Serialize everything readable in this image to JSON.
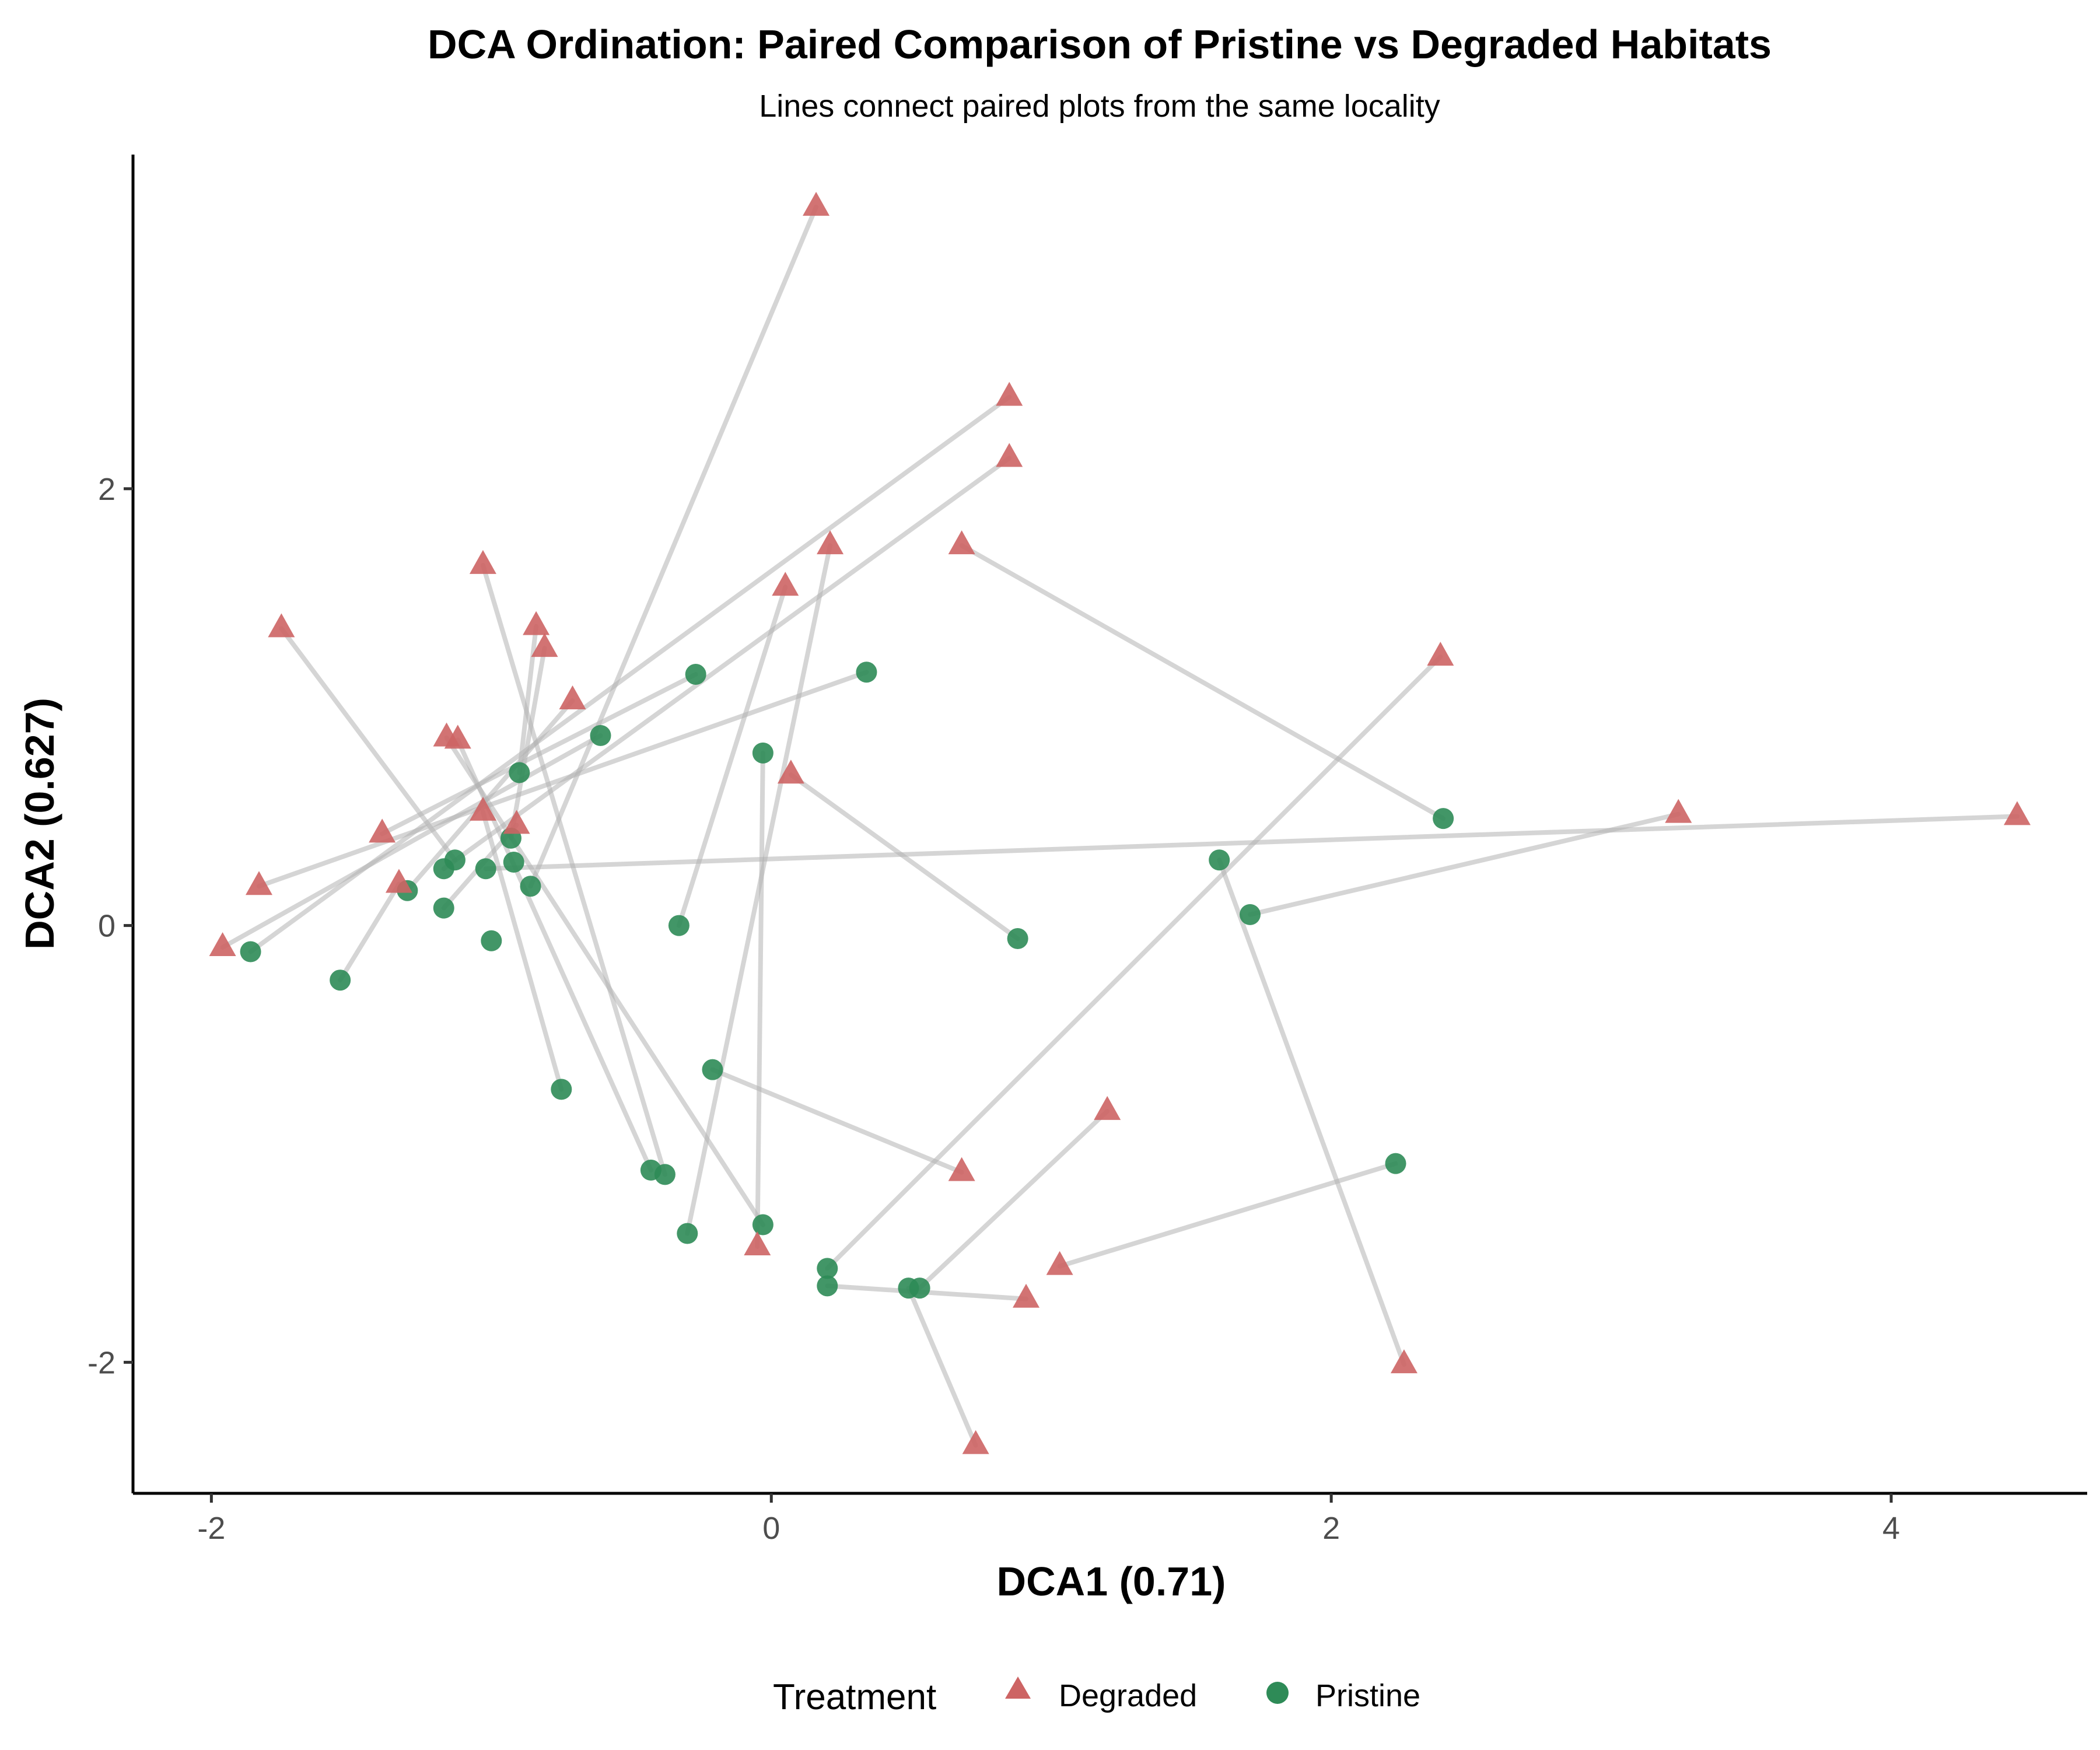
{
  "chart_data": {
    "type": "scatter",
    "title": "DCA Ordination: Paired Comparison of Pristine vs Degraded Habitats",
    "subtitle": "Lines connect paired plots from the same locality",
    "xlabel": "DCA1 (0.71)",
    "ylabel": "DCA2 (0.627)",
    "xlim": [
      -2.28,
      4.7
    ],
    "ylim": [
      -2.6,
      3.53
    ],
    "x_ticks": [
      -2,
      0,
      2,
      4
    ],
    "y_ticks": [
      -2,
      0,
      2
    ],
    "x_tick_labels": [
      "-2",
      "0",
      "2",
      "4"
    ],
    "y_tick_labels": [
      "-2",
      "0",
      "2"
    ],
    "grid": false,
    "legend": {
      "title": "Treatment",
      "position": "bottom",
      "entries": [
        {
          "label": "Degraded",
          "shape": "triangle",
          "color": "#CD6464"
        },
        {
          "label": "Pristine",
          "shape": "circle",
          "color": "#2E8B57"
        }
      ]
    },
    "series": [
      {
        "name": "Degraded",
        "shape": "triangle",
        "color": "#CD6464"
      },
      {
        "name": "Pristine",
        "shape": "circle",
        "color": "#2E8B57"
      }
    ],
    "pairs": [
      {
        "degraded": [
          0.16,
          3.29
        ],
        "pristine": [
          -0.86,
          0.18
        ]
      },
      {
        "degraded": [
          0.85,
          2.42
        ],
        "pristine": [
          -1.86,
          -0.12
        ]
      },
      {
        "degraded": [
          0.85,
          2.14
        ],
        "pristine": [
          -1.17,
          0.26
        ]
      },
      {
        "degraded": [
          0.21,
          1.74
        ],
        "pristine": [
          -0.3,
          -1.41
        ]
      },
      {
        "degraded": [
          0.68,
          1.74
        ],
        "pristine": [
          2.4,
          0.49
        ]
      },
      {
        "degraded": [
          0.05,
          1.55
        ],
        "pristine": [
          -0.33,
          0.0
        ]
      },
      {
        "degraded": [
          -1.75,
          1.36
        ],
        "pristine": [
          -1.13,
          0.3
        ]
      },
      {
        "degraded": [
          -0.84,
          1.37
        ],
        "pristine": [
          -0.9,
          0.7
        ]
      },
      {
        "degraded": [
          -0.81,
          1.27
        ],
        "pristine": [
          -0.93,
          0.4
        ]
      },
      {
        "degraded": [
          -0.71,
          1.03
        ],
        "pristine": [
          -1.3,
          0.16
        ]
      },
      {
        "degraded": [
          -1.03,
          1.65
        ],
        "pristine": [
          -0.38,
          -1.14
        ]
      },
      {
        "degraded": [
          -1.16,
          0.86
        ],
        "pristine": [
          -0.03,
          -1.37
        ]
      },
      {
        "degraded": [
          -1.12,
          0.85
        ],
        "pristine": [
          -0.43,
          -1.12
        ]
      },
      {
        "degraded": [
          -1.03,
          0.52
        ],
        "pristine": [
          -0.75,
          -0.75
        ]
      },
      {
        "degraded": [
          -0.91,
          0.46
        ],
        "pristine": [
          -1.17,
          0.08
        ]
      },
      {
        "degraded": [
          -1.39,
          0.42
        ],
        "pristine": [
          -0.27,
          1.15
        ]
      },
      {
        "degraded": [
          -1.83,
          0.18
        ],
        "pristine": [
          0.34,
          1.16
        ]
      },
      {
        "degraded": [
          -1.33,
          0.19
        ],
        "pristine": [
          -1.54,
          -0.25
        ]
      },
      {
        "degraded": [
          -1.96,
          -0.1
        ],
        "pristine": [
          -0.61,
          0.87
        ]
      },
      {
        "degraded": [
          0.07,
          0.69
        ],
        "pristine": [
          0.88,
          -0.06
        ]
      },
      {
        "degraded": [
          2.39,
          1.23
        ],
        "pristine": [
          0.2,
          -1.57
        ]
      },
      {
        "degraded": [
          4.45,
          0.5
        ],
        "pristine": [
          -1.02,
          0.26
        ]
      },
      {
        "degraded": [
          3.24,
          0.51
        ],
        "pristine": [
          1.71,
          0.05
        ]
      },
      {
        "degraded": [
          2.26,
          -2.01
        ],
        "pristine": [
          1.6,
          0.3
        ]
      },
      {
        "degraded": [
          0.68,
          -1.13
        ],
        "pristine": [
          -0.21,
          -0.66
        ]
      },
      {
        "degraded": [
          1.2,
          -0.85
        ],
        "pristine": [
          0.53,
          -1.66
        ]
      },
      {
        "degraded": [
          1.03,
          -1.56
        ],
        "pristine": [
          2.23,
          -1.09
        ]
      },
      {
        "degraded": [
          0.91,
          -1.71
        ],
        "pristine": [
          0.2,
          -1.65
        ]
      },
      {
        "degraded": [
          0.73,
          -2.38
        ],
        "pristine": [
          0.49,
          -1.66
        ]
      },
      {
        "degraded": [
          -0.05,
          -1.47
        ],
        "pristine": [
          -0.03,
          0.79
        ]
      },
      {
        "degraded": [
          null,
          null
        ],
        "pristine": [
          -1.0,
          -0.07
        ]
      },
      {
        "degraded": [
          null,
          null
        ],
        "pristine": [
          -0.92,
          0.29
        ]
      }
    ]
  }
}
